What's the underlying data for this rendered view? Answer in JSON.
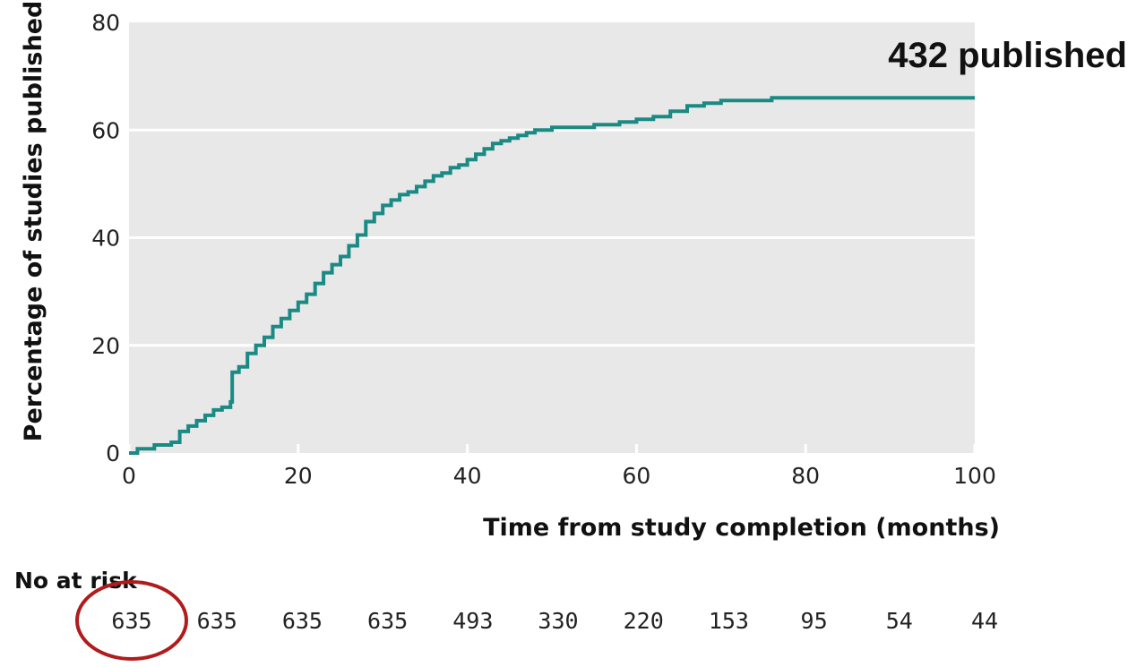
{
  "chart_data": {
    "type": "line",
    "step": "post",
    "xlabel": "Time from study completion (months)",
    "ylabel": "Percentage of studies published",
    "xlim": [
      0,
      100
    ],
    "ylim": [
      0,
      80
    ],
    "xticks": [
      0,
      20,
      40,
      60,
      80,
      100
    ],
    "yticks": [
      0,
      20,
      40,
      60,
      80
    ],
    "grid": "horizontal",
    "annotation": "432 published",
    "series": [
      {
        "color": "#1a8a84",
        "x": [
          0,
          1,
          3,
          5,
          6,
          7,
          8,
          9,
          10,
          11,
          12,
          12.2,
          13,
          14,
          15,
          16,
          17,
          18,
          19,
          20,
          21,
          22,
          23,
          24,
          25,
          26,
          27,
          28,
          29,
          30,
          31,
          32,
          33,
          34,
          35,
          36,
          37,
          38,
          39,
          40,
          41,
          42,
          43,
          44,
          45,
          46,
          47,
          48,
          50,
          52,
          55,
          58,
          60,
          62,
          64,
          66,
          68,
          70,
          72,
          75,
          76,
          78,
          80,
          85,
          90,
          95,
          100
        ],
        "y": [
          0,
          0.8,
          1.5,
          2,
          4,
          5,
          6,
          7,
          8,
          8.5,
          9.5,
          15,
          16,
          18.5,
          20,
          21.5,
          23.5,
          25,
          26.5,
          28,
          29.5,
          31.5,
          33.5,
          35,
          36.5,
          38.5,
          40.5,
          43,
          44.5,
          46,
          47,
          48,
          48.5,
          49.5,
          50.5,
          51.5,
          52,
          53,
          53.5,
          54.5,
          55.5,
          56.5,
          57.5,
          58,
          58.5,
          59,
          59.5,
          60,
          60.5,
          60.5,
          61,
          61.5,
          62,
          62.5,
          63.5,
          64.5,
          65,
          65.5,
          65.5,
          65.5,
          66,
          66,
          66,
          66,
          66,
          66,
          66
        ]
      }
    ]
  },
  "risk_table": {
    "title": "No at risk",
    "values": [
      "635",
      "635",
      "635",
      "635",
      "493",
      "330",
      "220",
      "153",
      "95",
      "54",
      "44"
    ]
  },
  "highlight": {
    "shape": "ellipse",
    "color": "#b01c1c",
    "target": "first No at risk value"
  }
}
